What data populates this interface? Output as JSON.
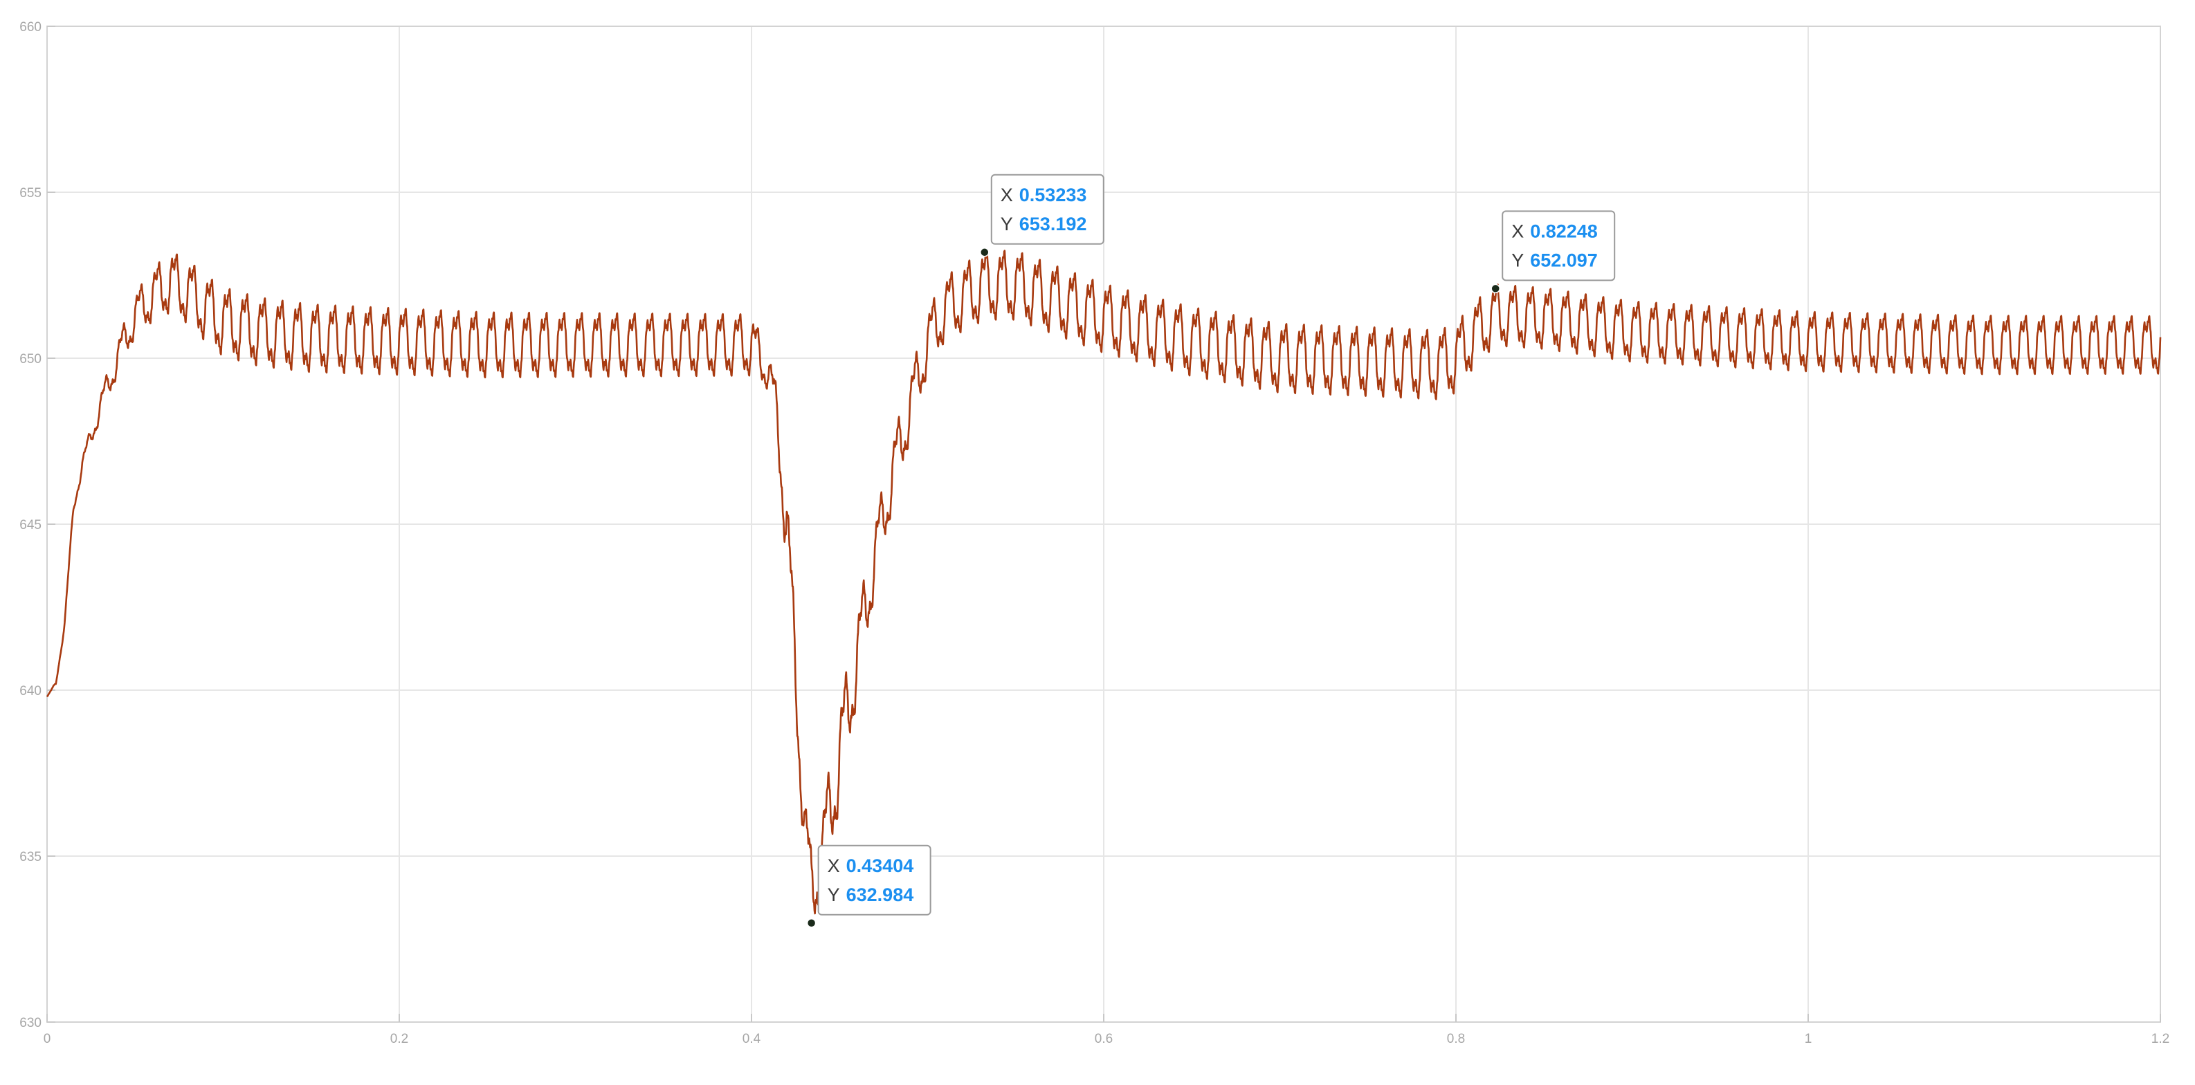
{
  "chart_data": {
    "type": "line",
    "title": "",
    "xlabel": "",
    "ylabel": "",
    "xlim": [
      0,
      1.2
    ],
    "ylim": [
      630,
      660
    ],
    "grid": true,
    "x_ticks": [
      0,
      0.2,
      0.4,
      0.6,
      0.8,
      1,
      1.2
    ],
    "x_tick_labels": [
      "0",
      "0.2",
      "0.4",
      "0.6",
      "0.8",
      "1",
      "1.2"
    ],
    "y_ticks": [
      630,
      635,
      640,
      645,
      650,
      655,
      660
    ],
    "y_tick_labels": [
      "630",
      "635",
      "640",
      "645",
      "650",
      "655",
      "660"
    ],
    "ripple_cycles_per_unit": 100,
    "series": [
      {
        "color": "#a83a10",
        "envelope": [
          [
            0.0,
            639.8
          ],
          [
            0.005,
            640.2
          ],
          [
            0.01,
            642.0
          ],
          [
            0.015,
            645.5
          ],
          [
            0.02,
            646.8
          ],
          [
            0.03,
            648.5
          ],
          [
            0.04,
            650.0
          ],
          [
            0.05,
            651.3
          ],
          [
            0.06,
            651.9
          ],
          [
            0.07,
            652.3
          ],
          [
            0.08,
            652.0
          ],
          [
            0.09,
            651.5
          ],
          [
            0.1,
            651.1
          ],
          [
            0.12,
            650.8
          ],
          [
            0.15,
            650.6
          ],
          [
            0.2,
            650.5
          ],
          [
            0.25,
            650.4
          ],
          [
            0.3,
            650.4
          ],
          [
            0.35,
            650.4
          ],
          [
            0.4,
            650.4
          ],
          [
            0.405,
            650.0
          ],
          [
            0.41,
            649.6
          ],
          [
            0.415,
            648.0
          ],
          [
            0.42,
            645.0
          ],
          [
            0.425,
            640.5
          ],
          [
            0.43,
            636.0
          ],
          [
            0.434,
            633.9
          ],
          [
            0.44,
            635.0
          ],
          [
            0.45,
            638.0
          ],
          [
            0.46,
            641.0
          ],
          [
            0.47,
            644.0
          ],
          [
            0.48,
            646.5
          ],
          [
            0.49,
            648.5
          ],
          [
            0.5,
            650.5
          ],
          [
            0.51,
            651.5
          ],
          [
            0.53233,
            652.2
          ],
          [
            0.55,
            652.2
          ],
          [
            0.57,
            651.8
          ],
          [
            0.6,
            651.2
          ],
          [
            0.65,
            650.5
          ],
          [
            0.7,
            650.0
          ],
          [
            0.75,
            649.9
          ],
          [
            0.79,
            649.8
          ],
          [
            0.8,
            650.0
          ],
          [
            0.81,
            650.7
          ],
          [
            0.82248,
            651.3
          ],
          [
            0.85,
            651.2
          ],
          [
            0.9,
            650.8
          ],
          [
            1.0,
            650.5
          ],
          [
            1.1,
            650.4
          ],
          [
            1.2,
            650.4
          ]
        ],
        "amplitude": [
          [
            0.0,
            0.0
          ],
          [
            0.02,
            0.2
          ],
          [
            0.04,
            0.45
          ],
          [
            0.07,
            0.8
          ],
          [
            0.1,
            0.9
          ],
          [
            0.4,
            0.8
          ],
          [
            0.41,
            0.5
          ],
          [
            0.42,
            1.2
          ],
          [
            0.43,
            1.0
          ],
          [
            0.45,
            1.3
          ],
          [
            0.47,
            0.9
          ],
          [
            0.5,
            0.8
          ],
          [
            0.53,
            0.9
          ],
          [
            0.6,
            0.9
          ],
          [
            0.8,
            0.9
          ],
          [
            0.82,
            0.8
          ],
          [
            1.2,
            0.75
          ]
        ]
      }
    ],
    "datatips": [
      {
        "x_label": "X",
        "y_label": "Y",
        "x": "0.53233",
        "y": "653.192",
        "xv": 0.53233,
        "yv": 653.192,
        "side": "above-right"
      },
      {
        "x_label": "X",
        "y_label": "Y",
        "x": "0.82248",
        "y": "652.097",
        "xv": 0.82248,
        "yv": 652.097,
        "side": "above-right"
      },
      {
        "x_label": "X",
        "y_label": "Y",
        "x": "0.43404",
        "y": "632.984",
        "xv": 0.43404,
        "yv": 632.984,
        "side": "above-right"
      }
    ]
  }
}
